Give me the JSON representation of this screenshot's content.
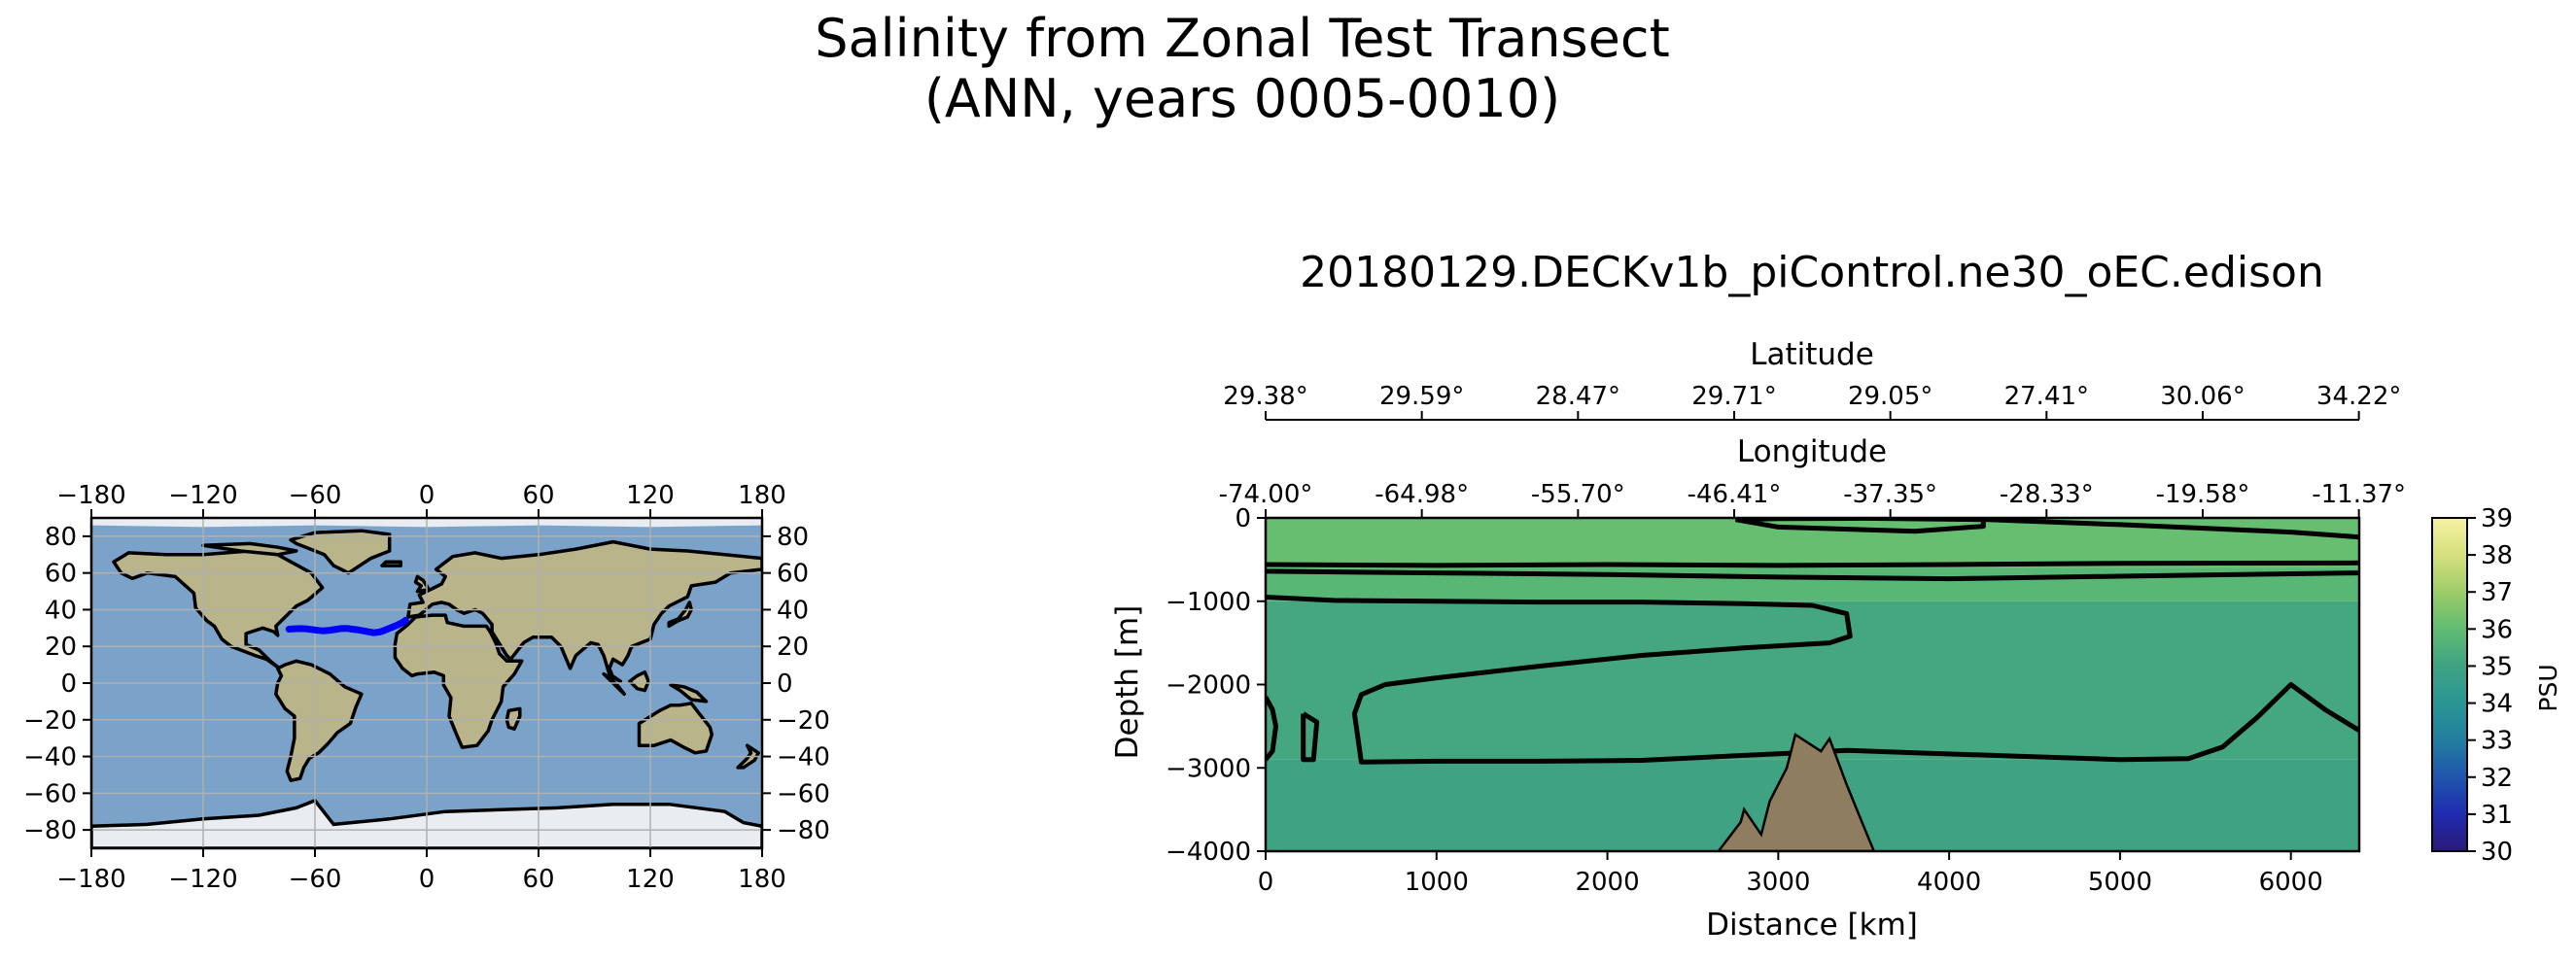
{
  "suptitle": {
    "line1": "Salinity from Zonal Test Transect",
    "line2": "(ANN, years 0005-0010)"
  },
  "colors": {
    "ocean": "#7ba3c9",
    "land": "#b9b48a",
    "ice": "#e9ecf1",
    "transect": "#0000ff",
    "bathymetry": "#8f7d60",
    "coast": "#000000",
    "grid": "#b0b0b0"
  },
  "map": {
    "lon_ticks": [
      "−180",
      "−120",
      "−60",
      "0",
      "60",
      "120",
      "180"
    ],
    "lat_ticks": [
      "80",
      "60",
      "40",
      "20",
      "0",
      "−20",
      "−40",
      "−60",
      "−80"
    ],
    "lon_range": [
      -180,
      180
    ],
    "lat_range": [
      -90,
      90
    ]
  },
  "chart_data": [
    {
      "type": "line",
      "series": [
        {
          "x": [
            -74.0,
            -71,
            -68,
            -65,
            -62,
            -58,
            -55.7,
            -52,
            -48,
            -46.41,
            -43,
            -40,
            -37.35,
            -34,
            -31,
            -28.33,
            -25,
            -22,
            -19.58,
            -16,
            -13,
            -11.37
          ],
          "y": [
            29.38,
            29.6,
            29.7,
            29.59,
            29.2,
            28.7,
            28.47,
            28.8,
            29.4,
            29.71,
            29.8,
            29.4,
            29.05,
            28.5,
            27.9,
            27.41,
            27.9,
            29.0,
            30.06,
            31.5,
            33.0,
            34.22
          ]
        }
      ],
      "xlim": [
        -180,
        180
      ],
      "ylim": [
        -90,
        90
      ]
    },
    {
      "type": "heatmap",
      "title": "20180129.DECKv1b_piControl.ne30_oEC.edison",
      "xlabel": "Distance [km]",
      "ylabel": "Depth [m]",
      "xlim": [
        0,
        6400
      ],
      "ylim": [
        -4000,
        0
      ],
      "x_ticks": [
        0,
        1000,
        2000,
        3000,
        4000,
        5000,
        6000
      ],
      "y_ticks": [
        0,
        -1000,
        -2000,
        -3000,
        -4000
      ],
      "y_tick_labels": [
        "0",
        "−1000",
        "−2000",
        "−3000",
        "−4000"
      ],
      "top_axes": [
        {
          "label": "Latitude",
          "ticks": [
            "29.38°",
            "29.59°",
            "28.47°",
            "29.71°",
            "29.05°",
            "27.41°",
            "30.06°",
            "34.22°"
          ]
        },
        {
          "label": "Longitude",
          "ticks": [
            "-74.00°",
            "-64.98°",
            "-55.70°",
            "-46.41°",
            "-37.35°",
            "-28.33°",
            "-19.58°",
            "-11.37°"
          ]
        }
      ],
      "top_tick_distances": [
        0,
        914,
        1828,
        2742,
        3656,
        4570,
        5484,
        6398
      ],
      "colorbar": {
        "label": "PSU",
        "range": [
          30,
          39
        ],
        "ticks": [
          30,
          31,
          32,
          33,
          34,
          35,
          36,
          37,
          38,
          39
        ]
      },
      "field_layers": [
        {
          "depth_top": 0,
          "depth_bottom": -600,
          "salinity": 36.1
        },
        {
          "depth_top": -600,
          "depth_bottom": -1000,
          "salinity": 35.8
        },
        {
          "depth_top": -1000,
          "depth_bottom": -2900,
          "salinity": 35.2
        },
        {
          "depth_top": -2900,
          "depth_bottom": -4000,
          "salinity": 35.0
        }
      ],
      "contours": [
        {
          "x": [
            0,
            1000,
            2000,
            3000,
            4000,
            5000,
            6400
          ],
          "y": [
            -560,
            -570,
            -560,
            -570,
            -560,
            -545,
            -540
          ]
        },
        {
          "x": [
            0,
            1000,
            2000,
            3000,
            4000,
            5000,
            6400
          ],
          "y": [
            -640,
            -660,
            -680,
            -710,
            -730,
            -700,
            -660
          ]
        },
        {
          "x": [
            0,
            400,
            1000,
            1600,
            2200,
            2800,
            3200,
            3400,
            3420,
            3300,
            2800,
            2200,
            1600,
            1000,
            700,
            560,
            520,
            560,
            1000,
            1600,
            2200,
            2600,
            3000,
            3400,
            3800,
            4400,
            5000,
            5400,
            5600,
            5800,
            6000,
            6200,
            6400
          ],
          "y": [
            -950,
            -990,
            -1000,
            -1010,
            -1010,
            -1030,
            -1050,
            -1150,
            -1420,
            -1500,
            -1560,
            -1650,
            -1780,
            -1920,
            -2000,
            -2120,
            -2350,
            -2930,
            -2920,
            -2920,
            -2910,
            -2870,
            -2830,
            -2790,
            -2820,
            -2860,
            -2900,
            -2890,
            -2750,
            -2400,
            -2000,
            -2300,
            -2550
          ]
        },
        {
          "x": [
            0,
            40,
            60,
            40,
            0
          ],
          "y": [
            -2150,
            -2300,
            -2500,
            -2800,
            -2900
          ]
        },
        {
          "x": [
            220,
            300,
            280,
            220,
            220
          ],
          "y": [
            -2350,
            -2450,
            -2900,
            -2900,
            -2350
          ]
        },
        {
          "x": [
            2750,
            3000,
            3500,
            4200,
            4200,
            3800,
            3000,
            2750
          ],
          "y": [
            -20,
            -8,
            -5,
            -20,
            -100,
            -160,
            -110,
            -20
          ]
        },
        {
          "x": [
            4100,
            5000,
            6000,
            6400
          ],
          "y": [
            -10,
            -80,
            -170,
            -230
          ]
        }
      ],
      "bathymetry": {
        "x": [
          2650,
          2780,
          2800,
          2900,
          2950,
          3050,
          3100,
          3250,
          3300,
          3400,
          3500,
          3560
        ],
        "depth": [
          -4000,
          -3650,
          -3500,
          -3800,
          -3400,
          -3000,
          -2600,
          -2800,
          -2650,
          -3200,
          -3700,
          -4000
        ]
      }
    }
  ]
}
